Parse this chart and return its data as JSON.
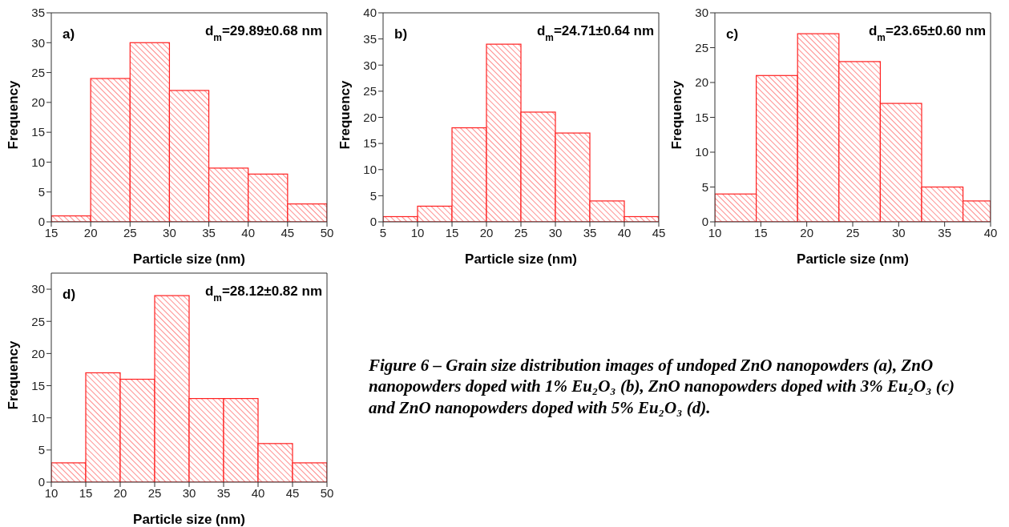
{
  "chart_data": [
    {
      "type": "histogram",
      "xlabel": "Particle size (nm)",
      "ylabel": "Frequency",
      "bins": [
        15,
        20,
        25,
        30,
        35,
        40,
        45,
        50
      ],
      "values": [
        1,
        24,
        30,
        22,
        9,
        8,
        3
      ],
      "color": "#ff2020",
      "xlim": [
        15,
        50
      ],
      "xticks": [
        15,
        20,
        25,
        30,
        35,
        40,
        45,
        50
      ],
      "ylim": [
        0,
        35
      ],
      "yticks": [
        0,
        5,
        10,
        15,
        20,
        25,
        30,
        35
      ],
      "annotations": [
        "a)",
        "d$_{m}$=29.89±0.68 nm"
      ]
    },
    {
      "type": "histogram",
      "xlabel": "Particle size (nm)",
      "ylabel": "Frequency",
      "bins": [
        5,
        10,
        15,
        20,
        25,
        30,
        35,
        40,
        45
      ],
      "values": [
        1,
        3,
        18,
        34,
        21,
        17,
        4,
        1
      ],
      "color": "#ff2020",
      "xlim": [
        5,
        45
      ],
      "xticks": [
        5,
        10,
        15,
        20,
        25,
        30,
        35,
        40,
        45
      ],
      "ylim": [
        0,
        40
      ],
      "yticks": [
        0,
        5,
        10,
        15,
        20,
        25,
        30,
        35,
        40
      ],
      "annotations": [
        "b)",
        "d$_{m}$=24.71±0.64 nm"
      ]
    },
    {
      "type": "histogram",
      "xlabel": "Particle size (nm)",
      "ylabel": "Frequency",
      "bins": [
        10,
        14.5,
        19,
        23.5,
        28,
        32.5,
        37,
        40
      ],
      "values": [
        4,
        21,
        27,
        23,
        17,
        5,
        3
      ],
      "color": "#ff2020",
      "xlim": [
        10,
        40
      ],
      "xticks": [
        10,
        15,
        20,
        25,
        30,
        35,
        40
      ],
      "ylim": [
        0,
        30
      ],
      "yticks": [
        0,
        5,
        10,
        15,
        20,
        25,
        30
      ],
      "annotations": [
        "c)",
        "d$_{m}$=23.65±0.60 nm"
      ]
    },
    {
      "type": "histogram",
      "xlabel": "Particle size (nm)",
      "ylabel": "Frequency",
      "bins": [
        10,
        15,
        20,
        25,
        30,
        35,
        40,
        45,
        50
      ],
      "values": [
        3,
        17,
        16,
        29,
        13,
        13,
        6,
        3
      ],
      "color": "#ff2020",
      "xlim": [
        10,
        50
      ],
      "xticks": [
        10,
        15,
        20,
        25,
        30,
        35,
        40,
        45,
        50
      ],
      "ylim": [
        0,
        32.5
      ],
      "yticks": [
        0,
        5,
        10,
        15,
        20,
        25,
        30
      ],
      "annotations": [
        "d)",
        "d$_{m}$=28.12±0.82 nm",
        "Figure 6 – Grain size distribution images of undoped ZnO nanopowders (a), ZnO nanopowders doped with 1% Eu₂O₃ (b), ZnO nanopowders doped with 3% Eu₂O₃ (c) and ZnO nanopowders doped with 5% Eu₂O₃ (d)."
      ]
    }
  ]
}
